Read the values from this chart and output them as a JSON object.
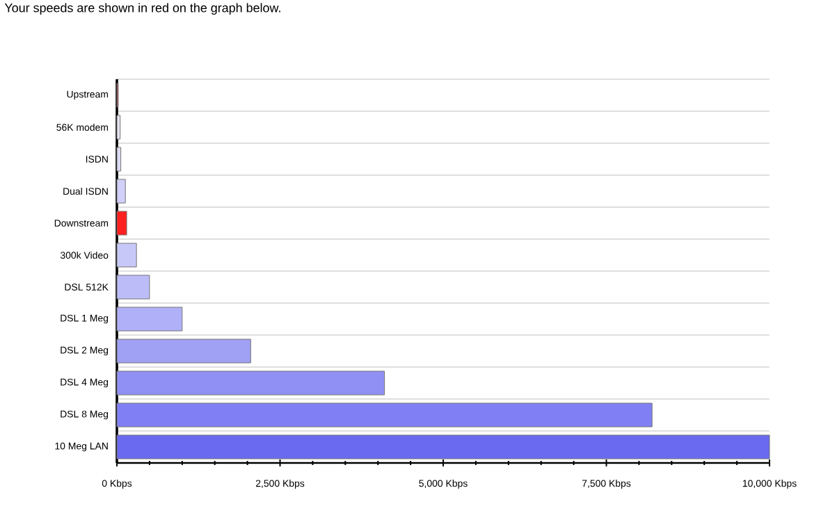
{
  "chart_data": {
    "type": "bar",
    "orientation": "horizontal",
    "title": "Your speeds are shown in red on the graph below.",
    "categories": [
      "Upstream",
      "56K modem",
      "ISDN",
      "Dual ISDN",
      "Downstream",
      "300k Video",
      "DSL 512K",
      "DSL 1 Meg",
      "DSL 2 Meg",
      "DSL 4 Meg",
      "DSL 8 Meg",
      "10 Meg LAN"
    ],
    "values": [
      20,
      50,
      60,
      130,
      150,
      300,
      500,
      1000,
      2050,
      4100,
      8200,
      10000
    ],
    "colors": [
      "#a04040",
      "#e4e4f2",
      "#dcdcf4",
      "#d0d0f8",
      "#ff2020",
      "#c8c8f8",
      "#bcbcf8",
      "#b0b0f8",
      "#a0a0f4",
      "#9090f4",
      "#8080f4",
      "#6a6af0"
    ],
    "xlim": [
      0,
      10000
    ],
    "xticks": [
      {
        "value": 0,
        "label": "0 Kbps"
      },
      {
        "value": 2500,
        "label": "2,500 Kbps"
      },
      {
        "value": 5000,
        "label": "5,000 Kbps"
      },
      {
        "value": 7500,
        "label": "7,500 Kbps"
      },
      {
        "value": 10000,
        "label": "10,000 Kbps"
      }
    ],
    "grid": "y"
  }
}
